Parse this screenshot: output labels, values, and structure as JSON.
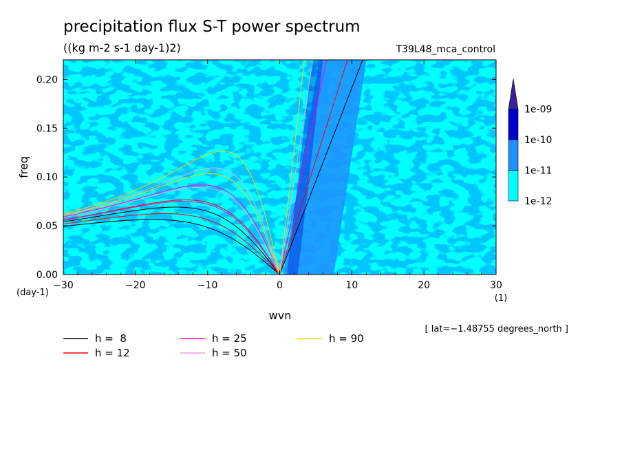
{
  "chart_data": {
    "type": "heatmap",
    "title": "precipitation flux S-T power spectrum",
    "subtitle": "((kg m-2 s-1 day-1)2)",
    "run_label": "T39L48_mca_control",
    "xlabel": "wvn",
    "ylabel": "freq",
    "x_unit": "(1)",
    "y_unit": "(day-1)",
    "xlim": [
      -30,
      30
    ],
    "ylim": [
      0,
      0.22
    ],
    "x_ticks": [
      -30,
      -20,
      -10,
      0,
      10,
      20,
      30
    ],
    "x_tick_labels": [
      "−30",
      "−20",
      "−10",
      "0",
      "10",
      "20",
      "30"
    ],
    "y_ticks": [
      0,
      0.05,
      0.1,
      0.15,
      0.2
    ],
    "y_tick_labels": [
      "0.00",
      "0.05",
      "0.10",
      "0.15",
      "0.20"
    ],
    "footnote": "[ lat=−1.48755 degrees_north ]",
    "colorbar": {
      "levels": [
        "1e-12",
        "1e-11",
        "1e-10",
        "1e-09"
      ],
      "colors": [
        "#00ffff",
        "#1e90ff",
        "#0000cd",
        "#3a1fa0"
      ],
      "extend": "max"
    },
    "background_color": "#00ffff",
    "dispersion_curves": [
      {
        "name": "h =  8",
        "h": 8,
        "color": "#000000"
      },
      {
        "name": "h = 12",
        "h": 12,
        "color": "#ff0000"
      },
      {
        "name": "h = 25",
        "h": 25,
        "color": "#ff00cc"
      },
      {
        "name": "h = 50",
        "h": 50,
        "color": "#e8a0e8"
      },
      {
        "name": "h = 90",
        "h": 90,
        "color": "#ffd000"
      }
    ]
  }
}
